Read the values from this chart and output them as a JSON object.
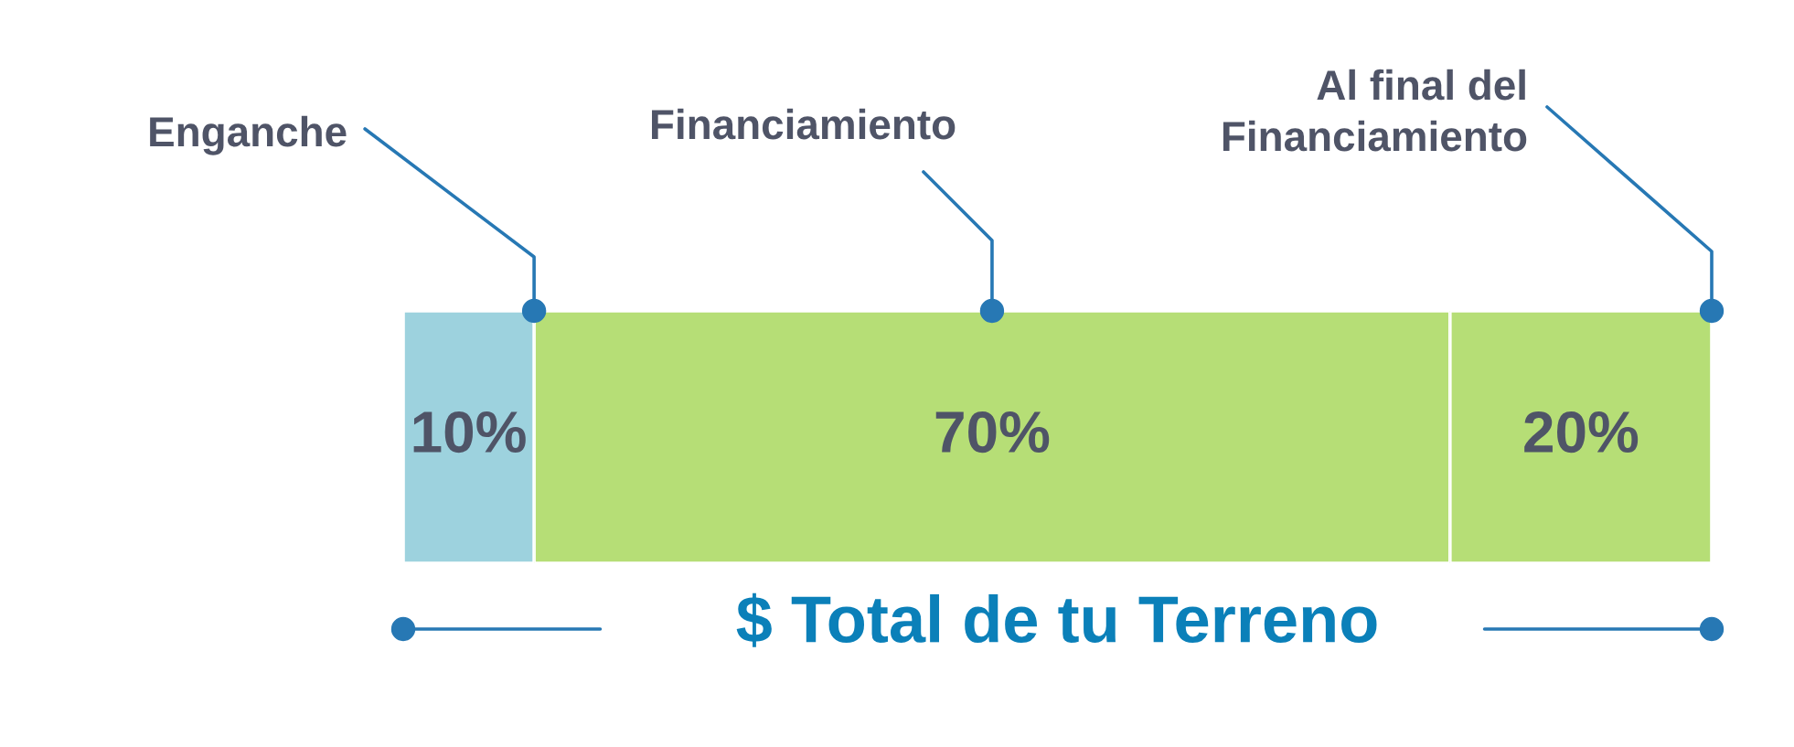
{
  "chart_data": {
    "type": "bar",
    "orientation": "horizontal",
    "stacked": true,
    "categories": [
      null
    ],
    "xlabel": "$ Total de tu Terreno",
    "series": [
      {
        "name": "Enganche",
        "color": "#9dd2de",
        "values": [
          10
        ],
        "value_labels": [
          "10%"
        ]
      },
      {
        "name": "Financiamiento",
        "color": "#b6de76",
        "values": [
          70
        ],
        "value_labels": [
          "70%"
        ]
      },
      {
        "name": "Al final del\nFinanciamiento",
        "color": "#b6de76",
        "values": [
          20
        ],
        "value_labels": [
          "20%"
        ]
      }
    ]
  }
}
